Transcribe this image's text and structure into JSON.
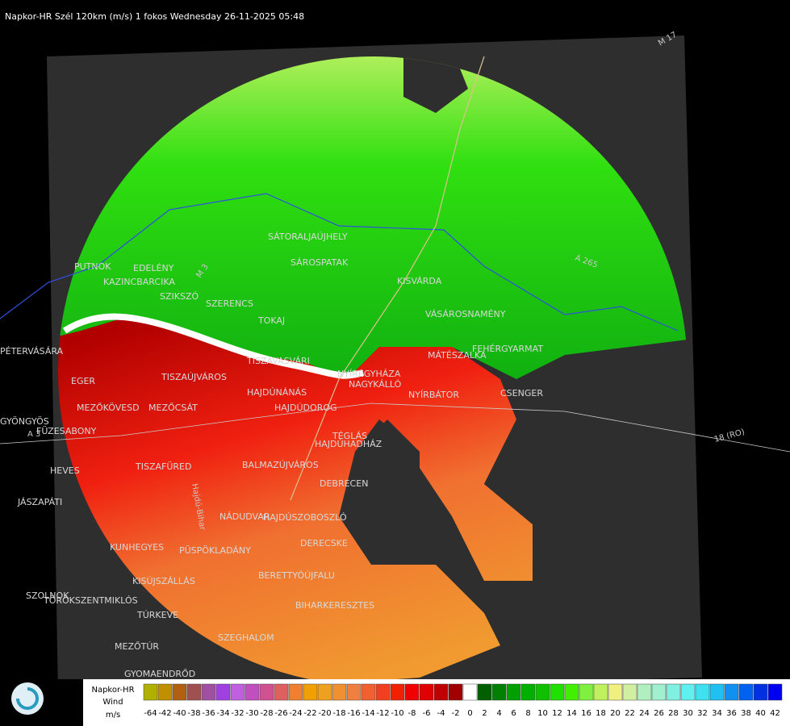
{
  "header": {
    "title": "Napkor-HR Szél 120km (m/s) 1 fokos Wednesday 26-11-2025 05:48"
  },
  "places": [
    "PUTNOK",
    "EDELÉNY",
    "KAZINCBARCIKA",
    "SZIKSZÓ",
    "SZERENCS",
    "SÁTORALJAÚJHELY",
    "SÁROSPATAK",
    "KISVÁRDA",
    "VÁSÁROSNAMÉNY",
    "TOKAJ",
    "PÉTERVÁSÁRA",
    "MÁTÉSZALKA",
    "FEHÉRGYARMAT",
    "TISZAÚJVÁROS",
    "TISZAVASVÁRI",
    "NYÍREGYHÁZA",
    "NAGYKÁLLÓ",
    "EGER",
    "HAJDÚNÁNÁS",
    "NYÍRBÁTOR",
    "CSENGER",
    "MEZŐKÖVESD",
    "MEZŐCSÁT",
    "HAJDÚDOROG",
    "GYÖNGYÖS",
    "FÜZESABONY",
    "TÉGLÁS",
    "HAJDÚHADHÁZ",
    "HEVES",
    "TISZAFÜRED",
    "BALMAZÚJVÁROS",
    "DEBRECEN",
    "JÁSZAPÁTI",
    "NÁDUDVAR",
    "HAJDÚSZOBOSZLÓ",
    "KUNHEGYES",
    "PÜSPÖKLADÁNY",
    "DERECSKE",
    "KISÚJSZÁLLÁS",
    "BERETTYÓÚJFALU",
    "SZOLNOK",
    "TÖRÖKSZENTMIKLÓS",
    "BIHARKERESZTES",
    "TÚRKEVE",
    "SZEGHALOM",
    "MEZŐTÚR",
    "GYOMAENDRŐD"
  ],
  "roads": [
    "A 3",
    "M 3",
    "18 (RO)",
    "A 265",
    "Hajdú-Bihar",
    "M 17"
  ],
  "legend": {
    "title": "Napkor-HR",
    "subtitle": "Wind",
    "unit": "m/s",
    "items": [
      {
        "value": -64,
        "color": "#b0b000"
      },
      {
        "value": -42,
        "color": "#c09000"
      },
      {
        "value": -40,
        "color": "#b06010"
      },
      {
        "value": -38,
        "color": "#a05050"
      },
      {
        "value": -36,
        "color": "#a050a0"
      },
      {
        "value": -34,
        "color": "#a040e0"
      },
      {
        "value": -32,
        "color": "#c060e0"
      },
      {
        "value": -30,
        "color": "#c050c0"
      },
      {
        "value": -28,
        "color": "#d05090"
      },
      {
        "value": -26,
        "color": "#e06060"
      },
      {
        "value": -24,
        "color": "#f08030"
      },
      {
        "value": -22,
        "color": "#f0a000"
      },
      {
        "value": -20,
        "color": "#f0a020"
      },
      {
        "value": -18,
        "color": "#f09030"
      },
      {
        "value": -16,
        "color": "#f08040"
      },
      {
        "value": -14,
        "color": "#f06030"
      },
      {
        "value": -12,
        "color": "#f04020"
      },
      {
        "value": -10,
        "color": "#f02000"
      },
      {
        "value": -8,
        "color": "#f00000"
      },
      {
        "value": -6,
        "color": "#e00000"
      },
      {
        "value": -4,
        "color": "#c00000"
      },
      {
        "value": -2,
        "color": "#a00000"
      },
      {
        "value": 0,
        "color": "#ffffff"
      },
      {
        "value": 2,
        "color": "#006000"
      },
      {
        "value": 4,
        "color": "#008000"
      },
      {
        "value": 6,
        "color": "#00a000"
      },
      {
        "value": 8,
        "color": "#00b000"
      },
      {
        "value": 10,
        "color": "#10c000"
      },
      {
        "value": 12,
        "color": "#20e000"
      },
      {
        "value": 14,
        "color": "#40f000"
      },
      {
        "value": 16,
        "color": "#80f040"
      },
      {
        "value": 18,
        "color": "#c0f060"
      },
      {
        "value": 20,
        "color": "#f0f080"
      },
      {
        "value": 22,
        "color": "#d0f0a0"
      },
      {
        "value": 24,
        "color": "#b0f0c0"
      },
      {
        "value": 26,
        "color": "#a0f0d0"
      },
      {
        "value": 28,
        "color": "#80f0e0"
      },
      {
        "value": 30,
        "color": "#60f0f0"
      },
      {
        "value": 32,
        "color": "#40e0f0"
      },
      {
        "value": 34,
        "color": "#20c0f0"
      },
      {
        "value": 36,
        "color": "#1090f0"
      },
      {
        "value": 38,
        "color": "#0060f0"
      },
      {
        "value": 40,
        "color": "#0030e0"
      },
      {
        "value": 42,
        "color": "#0000f0"
      }
    ]
  }
}
